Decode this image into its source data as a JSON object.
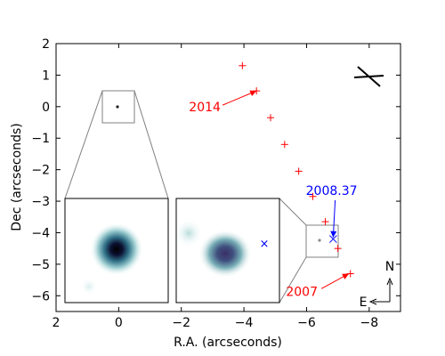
{
  "chart_data": {
    "type": "scatter",
    "title": "",
    "xlabel": "R.A. (arcseconds)",
    "ylabel": "Dec (arcseconds)",
    "xlim": [
      2,
      -9
    ],
    "ylim": [
      -6.5,
      2
    ],
    "x_inverted": true,
    "x_ticks": [
      2,
      0,
      -2,
      -4,
      -6,
      -8
    ],
    "x_tick_labels": [
      "2",
      "0",
      "−2",
      "−4",
      "−6",
      "−8"
    ],
    "y_ticks": [
      2,
      1,
      0,
      -1,
      -2,
      -3,
      -4,
      -5,
      -6
    ],
    "y_tick_labels": [
      "2",
      "1",
      "0",
      "−1",
      "−2",
      "−3",
      "−4",
      "−5",
      "−6"
    ],
    "grid": false,
    "series": [
      {
        "marker": "plus",
        "color": "#ff0000",
        "points": [
          {
            "x": -3.95,
            "y": 1.3
          },
          {
            "x": -4.4,
            "y": 0.5
          },
          {
            "x": -4.85,
            "y": -0.35
          },
          {
            "x": -5.3,
            "y": -1.2
          },
          {
            "x": -5.75,
            "y": -2.05
          },
          {
            "x": -6.2,
            "y": -2.85
          },
          {
            "x": -6.6,
            "y": -3.65
          },
          {
            "x": -7.0,
            "y": -4.5
          },
          {
            "x": -7.4,
            "y": -5.3
          }
        ]
      },
      {
        "marker": "cross",
        "color": "#0000ff",
        "points": [
          {
            "x": -6.85,
            "y": -4.2
          }
        ]
      }
    ],
    "annotations": [
      {
        "text": "2014",
        "color": "#ff0000",
        "text_at": [
          -2.75,
          -0.15
        ],
        "arrow_to": [
          -4.4,
          0.5
        ]
      },
      {
        "text": "2008.37",
        "color": "#0000ff",
        "text_at": [
          -6.8,
          -2.8
        ],
        "arrow_to": [
          -6.85,
          -4.15
        ]
      },
      {
        "text": "2007",
        "color": "#ff0000",
        "text_at": [
          -5.85,
          -6.0
        ],
        "arrow_to": [
          -7.35,
          -5.3
        ]
      }
    ],
    "zoom_boxes": [
      {
        "x": [
          0.5,
          -0.5
        ],
        "y": [
          -0.5,
          0.5
        ]
      },
      {
        "x": [
          -6.3,
          -7.3
        ],
        "y": [
          -4.8,
          -3.8
        ]
      }
    ],
    "compass": {
      "north": "N",
      "east": "E"
    }
  }
}
